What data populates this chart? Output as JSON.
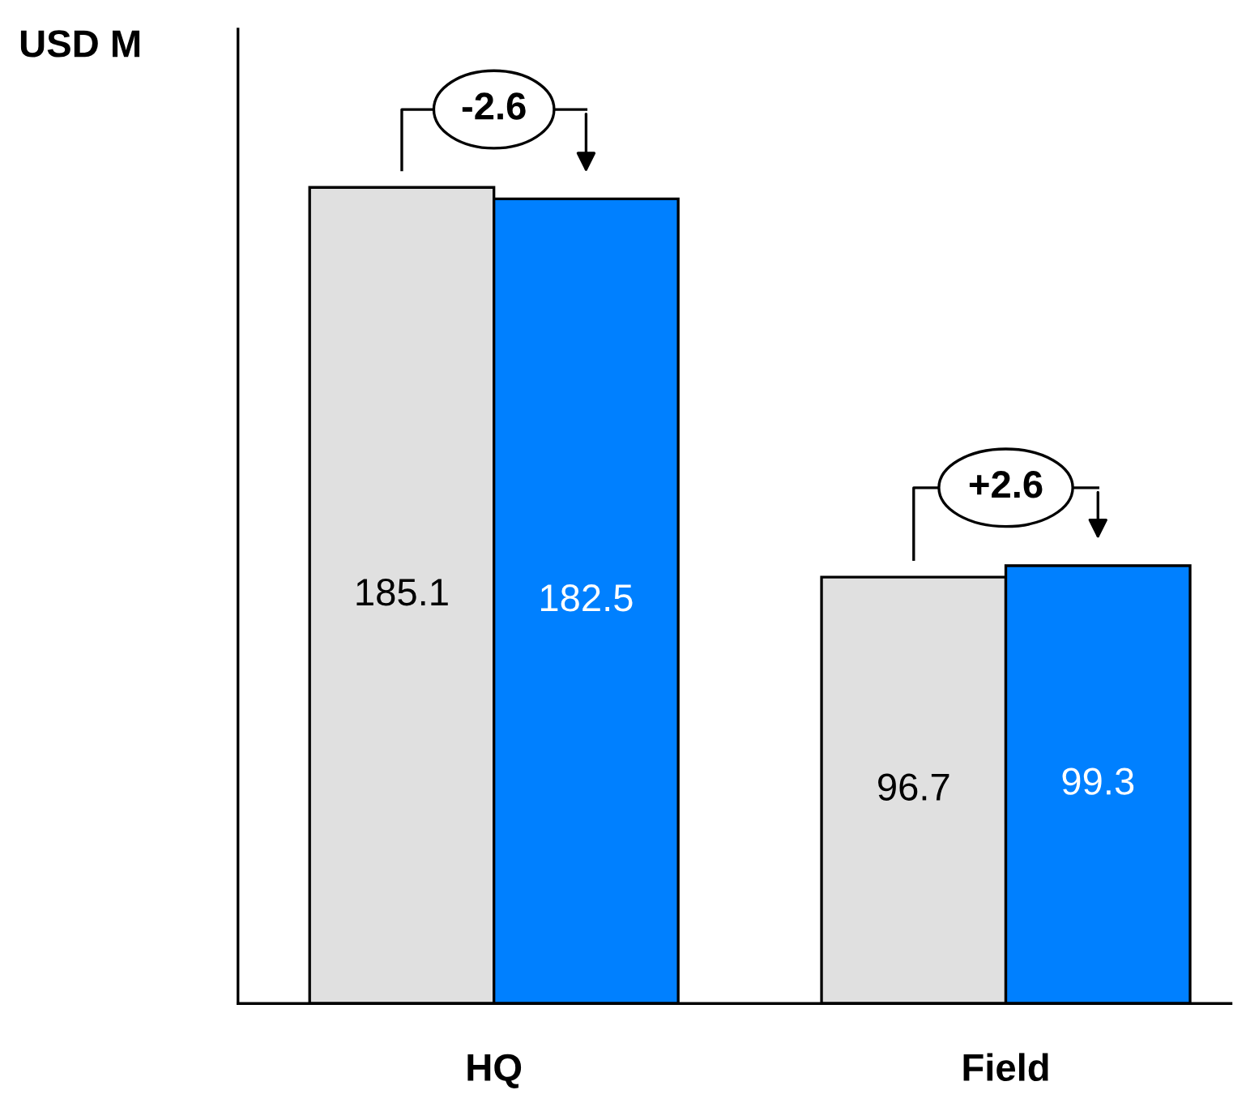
{
  "chart_data": {
    "type": "bar",
    "ylabel": "USD M",
    "categories": [
      "HQ",
      "Field"
    ],
    "series": [
      {
        "color": "#e0e0e0",
        "values": [
          185.1,
          96.7
        ]
      },
      {
        "color": "#0080ff",
        "values": [
          182.5,
          99.3
        ]
      }
    ],
    "ylim": [
      0,
      221
    ],
    "tick_labels": "x",
    "data_labels": true,
    "grid": false,
    "legend": false,
    "annotations": [
      "-2.6",
      "+2.6"
    ]
  }
}
